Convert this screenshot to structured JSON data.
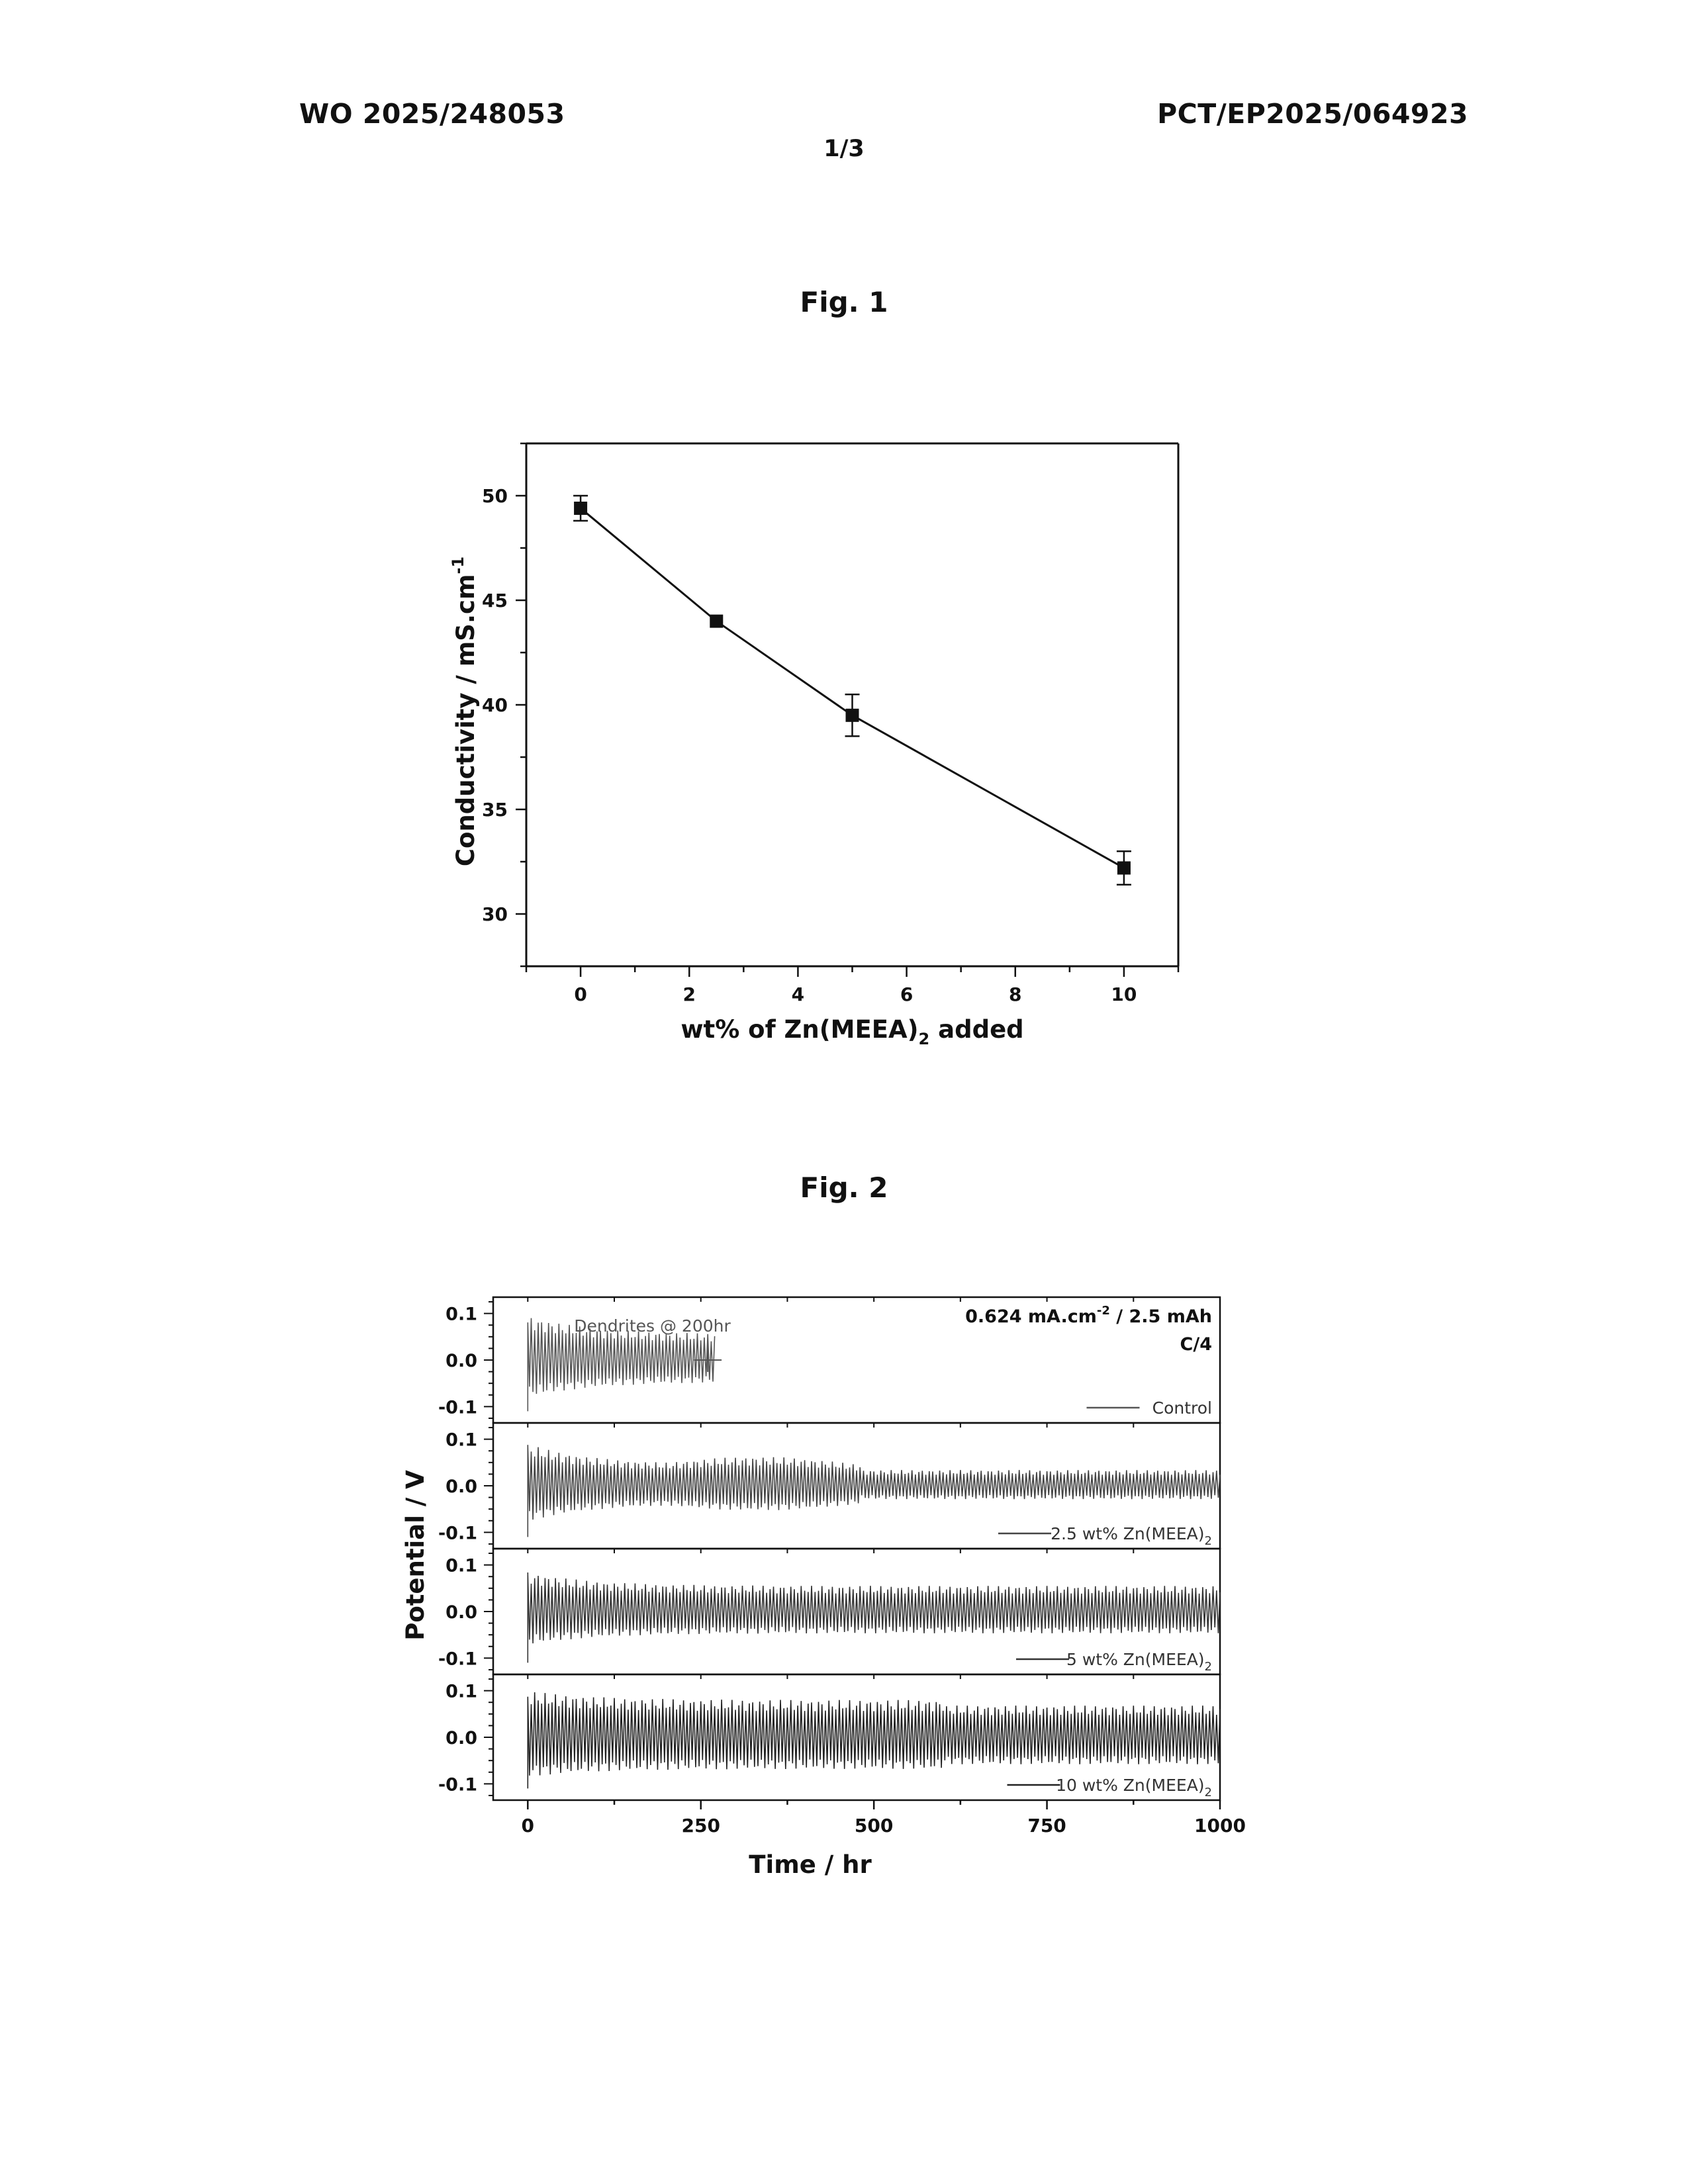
{
  "header": {
    "left": "WO 2025/248053",
    "right": "PCT/EP2025/064923",
    "page": "1/3"
  },
  "figures": [
    {
      "title": "Fig. 1"
    },
    {
      "title": "Fig. 2"
    }
  ],
  "colors": {
    "ink": "#111111",
    "trace_control": "#555555",
    "trace_2_5": "#444444",
    "trace_5": "#333333",
    "trace_10": "#222222"
  },
  "chart_data": [
    {
      "type": "scatter",
      "connected": true,
      "title": "",
      "xlabel_prefix": "wt% of Zn(MEEA)",
      "xlabel_sub": "2",
      "xlabel_suffix": " added",
      "ylabel_main": "Conductivity / mS.cm",
      "ylabel_sup": "-1",
      "xlim": [
        -1,
        11
      ],
      "ylim": [
        27.5,
        52.5
      ],
      "xticks": [
        0,
        2,
        4,
        6,
        8,
        10
      ],
      "yticks": [
        30,
        35,
        40,
        45,
        50
      ],
      "x": [
        0,
        2.5,
        5,
        10
      ],
      "y": [
        49.4,
        44.0,
        39.5,
        32.2
      ],
      "yerr": [
        0.6,
        0.15,
        1.0,
        0.8
      ],
      "grid": false
    },
    {
      "type": "line",
      "title": "",
      "xlabel": "Time / hr",
      "ylabel": "Potential / V",
      "xlim": [
        -50,
        1000
      ],
      "xticks": [
        0,
        250,
        500,
        750,
        1000
      ],
      "annotation_rate_main": "0.624 mA.cm",
      "annotation_rate_sup": "-2",
      "annotation_rate_tail": " / 2.5 mAh",
      "annotation_crate": "C/4",
      "panels": [
        {
          "name": "Control",
          "name_sub": "",
          "ylim": [
            -0.135,
            0.135
          ],
          "yticks": [
            0.1,
            0.0,
            -0.1
          ],
          "ytick_labels": [
            "0.1",
            "0.0",
            "-0.1"
          ],
          "t_end": 270,
          "peak": 0.095,
          "amp": 0.055,
          "annotation": "Dendrites @ 200hr"
        },
        {
          "name": "2.5 wt% Zn(MEEA)",
          "name_sub": "2",
          "ylim": [
            -0.135,
            0.135
          ],
          "yticks": [
            0.1,
            0.0,
            -0.1
          ],
          "ytick_labels": [
            "0.1",
            "0.0",
            "-0.1"
          ],
          "t_end": 1000,
          "peak": 0.09,
          "amp": 0.045
        },
        {
          "name": "5 wt% Zn(MEEA)",
          "name_sub": "2",
          "ylim": [
            -0.135,
            0.135
          ],
          "yticks": [
            0.1,
            0.0,
            -0.1
          ],
          "ytick_labels": [
            "0.1",
            "0.0",
            "-0.1"
          ],
          "t_end": 1000,
          "peak": 0.085,
          "amp": 0.055
        },
        {
          "name": "10 wt% Zn(MEEA)",
          "name_sub": "2",
          "ylim": [
            -0.135,
            0.135
          ],
          "yticks": [
            0.1,
            0.0,
            -0.1
          ],
          "ytick_labels": [
            "0.1",
            "0.0",
            "-0.1"
          ],
          "t_end": 1000,
          "peak": 0.1,
          "amp": 0.08
        }
      ],
      "legend_placement": "bottom-right of each panel"
    }
  ]
}
